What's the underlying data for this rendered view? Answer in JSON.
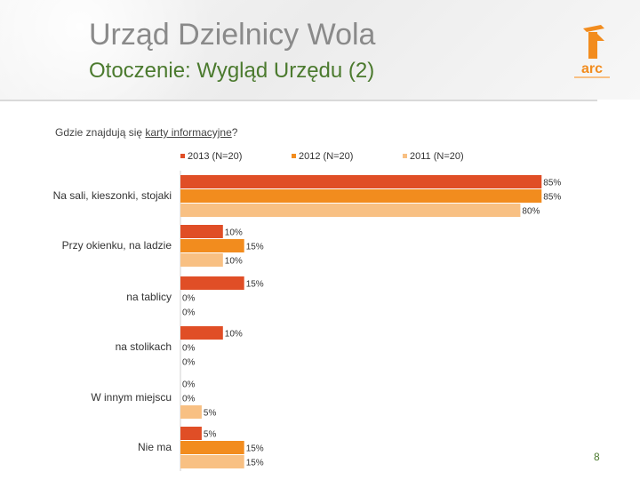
{
  "header": {
    "title": "Urząd Dzielnicy Wola",
    "subtitle": "Otoczenie: Wygląd Urzędu (2)",
    "logo_text": "arc"
  },
  "question": {
    "prefix": "Gdzie znajdują się ",
    "underlined": "karty informacyjne",
    "suffix": "?"
  },
  "page_number": "8",
  "colors": {
    "series_2013": "#e04e26",
    "series_2012": "#f28c1e",
    "series_2011": "#f8c083",
    "logo": "#f28c1e",
    "subtitle": "#4b7a2e"
  },
  "chart_data": {
    "type": "bar",
    "orientation": "horizontal",
    "categories": [
      "Na sali, kieszonki, stojaki",
      "Przy okienku, na ladzie",
      "na tablicy",
      "na stolikach",
      "W innym miejscu",
      "Nie ma"
    ],
    "series": [
      {
        "name": "2013 (N=20)",
        "values": [
          85,
          10,
          15,
          10,
          0,
          5
        ]
      },
      {
        "name": "2012 (N=20)",
        "values": [
          85,
          15,
          0,
          0,
          0,
          15
        ]
      },
      {
        "name": "2011 (N=20)",
        "values": [
          80,
          10,
          0,
          0,
          5,
          15
        ]
      }
    ],
    "value_suffix": "%",
    "xlim": [
      0,
      100
    ],
    "grid": false,
    "legend": "top"
  }
}
